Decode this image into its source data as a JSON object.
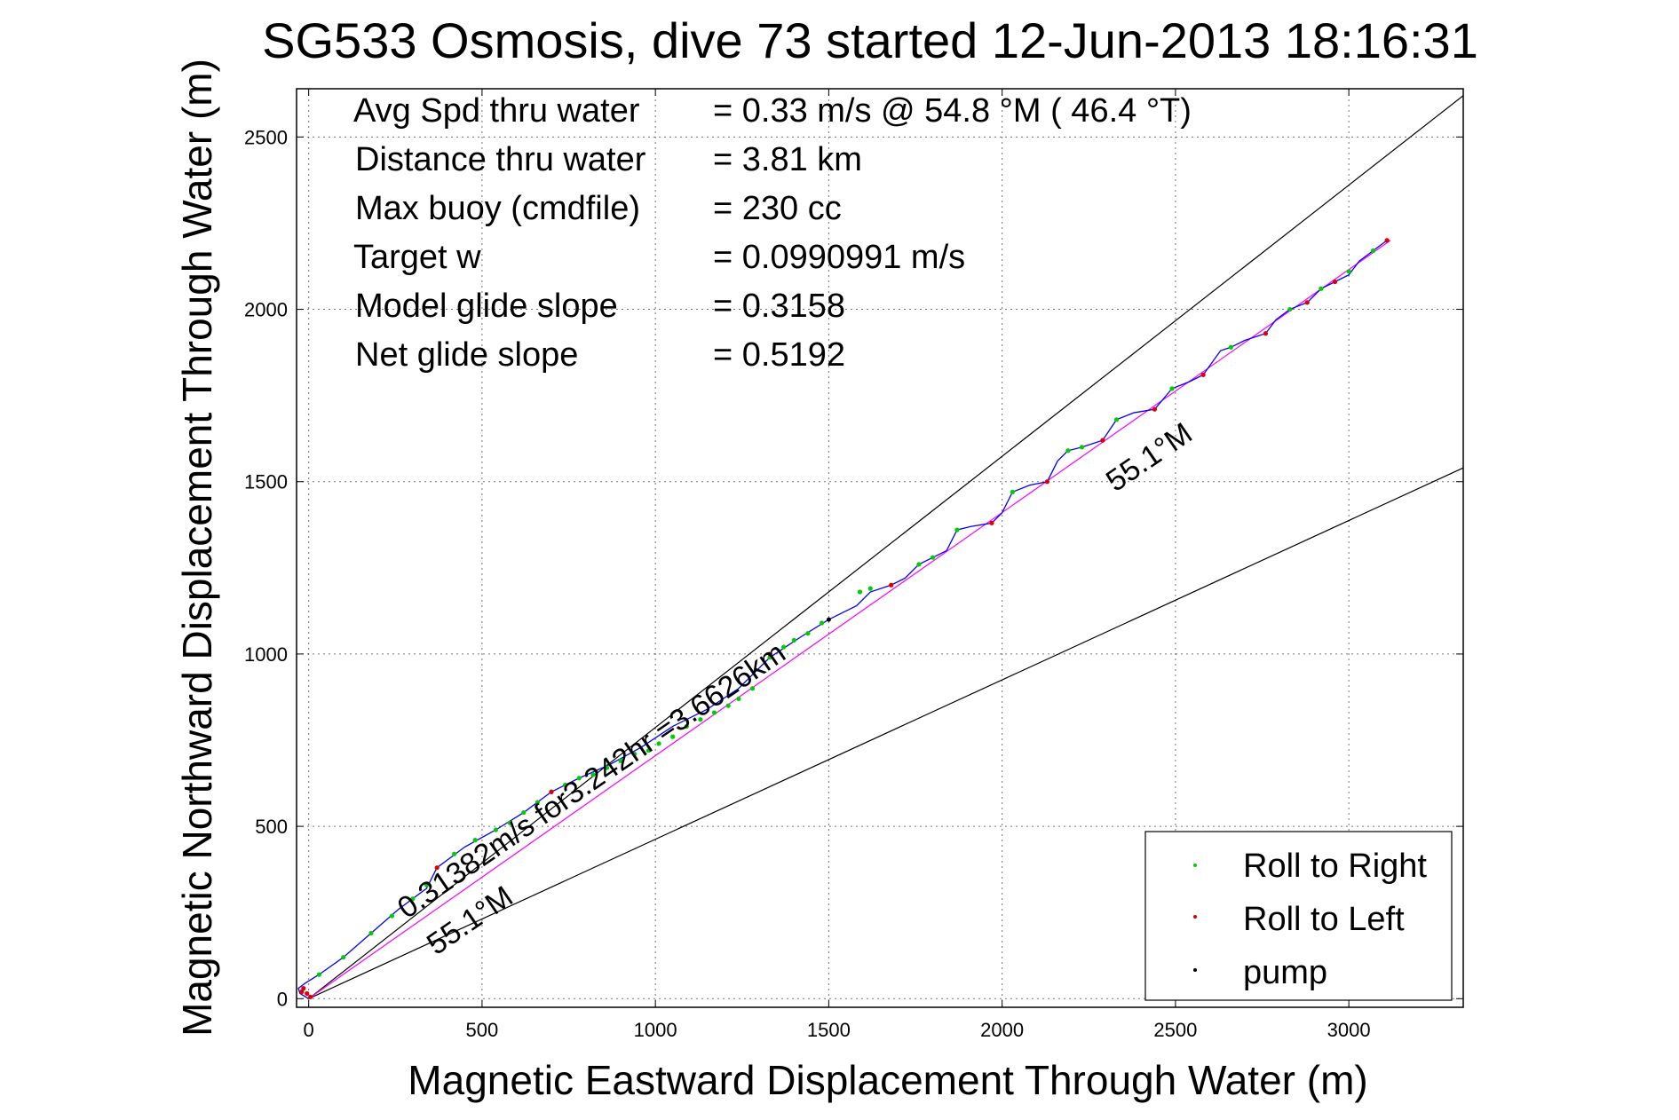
{
  "chart_data": {
    "type": "line",
    "title": "SG533 Osmosis, dive 73 started 12-Jun-2013 18:16:31",
    "xlabel": "Magnetic Eastward Displacement Through Water (m)",
    "ylabel": "Magnetic Northward Displacement Through Water (m)",
    "xlim": [
      -35,
      3330
    ],
    "ylim": [
      -25,
      2640
    ],
    "xticks": [
      0,
      500,
      1000,
      1500,
      2000,
      2500,
      3000
    ],
    "yticks": [
      0,
      500,
      1000,
      1500,
      2000,
      2500
    ],
    "grid": true,
    "legend_position": "bottom-right",
    "info": [
      {
        "label": "Avg Spd thru water",
        "value": "=  0.33 m/s @  54.8 °M ( 46.4 °T)"
      },
      {
        "label": "Distance thru water",
        "value": "=  3.81 km"
      },
      {
        "label": "Max buoy (cmdfile)",
        "value": "= 230 cc"
      },
      {
        "label": "Target w",
        "value": "= 0.0990991 m/s"
      },
      {
        "label": "Model glide slope",
        "value": "= 0.3158"
      },
      {
        "label": "Net glide slope",
        "value": "= 0.5192"
      }
    ],
    "annotations": {
      "speed_line_label": "0.31382m/s for3.242hr =3.6626km",
      "heading_label_upper": "55.1°M",
      "heading_label_lower": "55.1°M"
    },
    "reference_lines": [
      {
        "from": [
          0,
          0
        ],
        "to": [
          3330,
          2620
        ],
        "color": "#000000"
      },
      {
        "from": [
          0,
          0
        ],
        "to": [
          3330,
          1540
        ],
        "color": "#000000"
      },
      {
        "from": [
          0,
          0
        ],
        "to": [
          3120,
          2200
        ],
        "color": "#ff00ff"
      }
    ],
    "track": {
      "color": "#0000ff",
      "x": [
        0,
        -25,
        -30,
        -10,
        30,
        100,
        180,
        260,
        340,
        370,
        450,
        540,
        620,
        700,
        780,
        870,
        960,
        1050,
        1150,
        1240,
        1330,
        1420,
        1500,
        1540,
        1580,
        1620,
        1680,
        1720,
        1760,
        1800,
        1840,
        1870,
        1910,
        1970,
        2000,
        2030,
        2080,
        2130,
        2160,
        2190,
        2230,
        2290,
        2330,
        2380,
        2440,
        2490,
        2540,
        2580,
        2630,
        2660,
        2700,
        2760,
        2790,
        2830,
        2880,
        2920,
        2960,
        3000,
        3030,
        3070,
        3110
      ],
      "y": [
        0,
        15,
        30,
        45,
        70,
        120,
        190,
        260,
        320,
        380,
        440,
        490,
        540,
        600,
        640,
        680,
        730,
        790,
        840,
        900,
        990,
        1050,
        1100,
        1120,
        1140,
        1180,
        1200,
        1220,
        1260,
        1280,
        1300,
        1360,
        1370,
        1380,
        1410,
        1470,
        1490,
        1500,
        1560,
        1590,
        1600,
        1620,
        1680,
        1700,
        1710,
        1770,
        1790,
        1810,
        1880,
        1890,
        1910,
        1930,
        1970,
        2000,
        2020,
        2060,
        2080,
        2100,
        2140,
        2170,
        2200
      ]
    },
    "series": [
      {
        "name": "Roll to Right",
        "color": "#00cc00",
        "x": [
          30,
          100,
          180,
          240,
          300,
          340,
          420,
          480,
          540,
          580,
          620,
          660,
          700,
          740,
          780,
          820,
          860,
          900,
          940,
          980,
          1010,
          1050,
          1090,
          1130,
          1170,
          1210,
          1240,
          1280,
          1330,
          1370,
          1400,
          1440,
          1480,
          1590,
          1620,
          1760,
          1800,
          1870,
          2030,
          2190,
          2230,
          2330,
          2490,
          2660,
          2830,
          2920,
          3000,
          3070
        ],
        "y": [
          70,
          120,
          190,
          240,
          290,
          330,
          420,
          460,
          490,
          510,
          540,
          570,
          600,
          620,
          640,
          650,
          670,
          690,
          710,
          720,
          740,
          760,
          790,
          810,
          830,
          850,
          870,
          900,
          990,
          1020,
          1040,
          1060,
          1090,
          1180,
          1190,
          1260,
          1280,
          1360,
          1470,
          1590,
          1600,
          1680,
          1770,
          1890,
          2000,
          2060,
          2110,
          2170
        ]
      },
      {
        "name": "Roll to Left",
        "color": "#dd0000",
        "x": [
          -20,
          -15,
          -5,
          5,
          370,
          700,
          1330,
          1680,
          1970,
          2130,
          2290,
          2440,
          2580,
          2760,
          2880,
          2960,
          3110
        ],
        "y": [
          20,
          30,
          15,
          5,
          380,
          600,
          1000,
          1200,
          1380,
          1500,
          1620,
          1710,
          1810,
          1930,
          2020,
          2080,
          2200
        ]
      },
      {
        "name": "pump",
        "color": "#000000",
        "x": [
          1500
        ],
        "y": [
          1100
        ]
      }
    ]
  }
}
